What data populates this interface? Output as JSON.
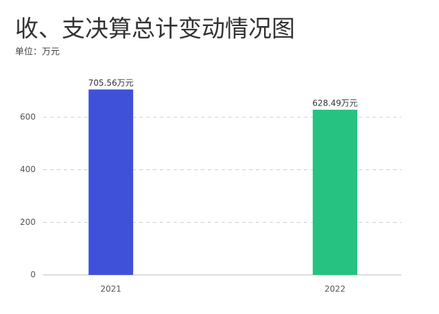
{
  "chart_data": {
    "type": "bar",
    "title": "收、支决算总计变动情况图",
    "subtitle": "单位：万元",
    "categories": [
      "2021",
      "2022"
    ],
    "values": [
      705.56,
      628.49
    ],
    "value_labels": [
      "705.56万元",
      "628.49万元"
    ],
    "colors": [
      "#3f51d9",
      "#26c281"
    ],
    "ylim": [
      0,
      800
    ],
    "yticks": [
      0,
      200,
      400,
      600
    ],
    "grid": true
  }
}
